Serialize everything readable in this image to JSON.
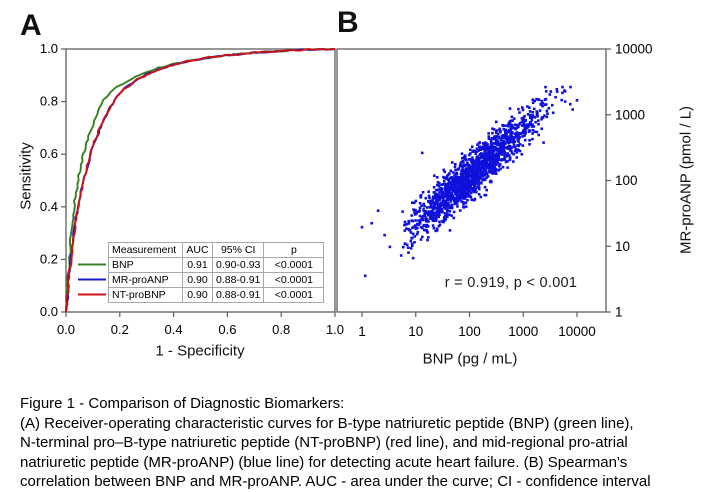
{
  "panels": {
    "a_label": "A",
    "b_label": "B"
  },
  "colors": {
    "axis": "#5f5f5f",
    "bnp_green": "#35801f",
    "mrproanp_blue": "#1a1acc",
    "ntprobnp_red": "#cc1414",
    "scatter_blue": "#1010dd"
  },
  "caption": {
    "lines": [
      "Figure 1 - Comparison of Diagnostic Biomarkers:",
      "(A) Receiver-operating characteristic curves for B-type natriuretic peptide (BNP) (green line),",
      "N-terminal pro–B-type natriuretic peptide (NT-proBNP) (red line), and mid-regional pro-atrial",
      "natriuretic peptide (MR-proANP) (blue line) for detecting acute heart failure. (B) Spearman's",
      "correlation between BNP and MR-proANP. AUC - area under the curve; CI - confidence interval"
    ]
  },
  "chart_data": [
    {
      "type": "line",
      "panel": "A",
      "xlabel": "1 - Specificity",
      "ylabel": "Sensitivity",
      "xlim": [
        0,
        1
      ],
      "ylim": [
        0,
        1
      ],
      "x_ticks": [
        "0.0",
        "0.2",
        "0.4",
        "0.6",
        "0.8",
        "1.0"
      ],
      "y_ticks": [
        "0.0",
        "0.2",
        "0.4",
        "0.6",
        "0.8",
        "1.0"
      ],
      "grid": false,
      "series": [
        {
          "name": "BNP",
          "color": "#35801f",
          "points": [
            [
              0,
              0
            ],
            [
              0.004,
              0.06
            ],
            [
              0.008,
              0.13
            ],
            [
              0.012,
              0.19
            ],
            [
              0.016,
              0.26
            ],
            [
              0.02,
              0.31
            ],
            [
              0.026,
              0.37
            ],
            [
              0.032,
              0.42
            ],
            [
              0.04,
              0.47
            ],
            [
              0.048,
              0.52
            ],
            [
              0.056,
              0.56
            ],
            [
              0.065,
              0.6
            ],
            [
              0.075,
              0.64
            ],
            [
              0.085,
              0.67
            ],
            [
              0.095,
              0.7
            ],
            [
              0.105,
              0.725
            ],
            [
              0.115,
              0.75
            ],
            [
              0.125,
              0.775
            ],
            [
              0.135,
              0.8
            ],
            [
              0.15,
              0.82
            ],
            [
              0.165,
              0.835
            ],
            [
              0.18,
              0.85
            ],
            [
              0.2,
              0.862
            ],
            [
              0.22,
              0.875
            ],
            [
              0.245,
              0.887
            ],
            [
              0.27,
              0.9
            ],
            [
              0.3,
              0.912
            ],
            [
              0.33,
              0.923
            ],
            [
              0.36,
              0.932
            ],
            [
              0.4,
              0.943
            ],
            [
              0.44,
              0.952
            ],
            [
              0.48,
              0.96
            ],
            [
              0.52,
              0.966
            ],
            [
              0.56,
              0.972
            ],
            [
              0.62,
              0.978
            ],
            [
              0.68,
              0.984
            ],
            [
              0.75,
              0.99
            ],
            [
              0.82,
              0.994
            ],
            [
              0.9,
              0.997
            ],
            [
              1,
              1
            ]
          ]
        },
        {
          "name": "MR-proANP",
          "color": "#1a1acc",
          "points": [
            [
              0,
              0
            ],
            [
              0.006,
              0.07
            ],
            [
              0.012,
              0.14
            ],
            [
              0.018,
              0.2
            ],
            [
              0.024,
              0.26
            ],
            [
              0.03,
              0.31
            ],
            [
              0.038,
              0.36
            ],
            [
              0.046,
              0.41
            ],
            [
              0.055,
              0.46
            ],
            [
              0.065,
              0.5
            ],
            [
              0.075,
              0.54
            ],
            [
              0.085,
              0.575
            ],
            [
              0.095,
              0.61
            ],
            [
              0.105,
              0.64
            ],
            [
              0.115,
              0.665
            ],
            [
              0.125,
              0.69
            ],
            [
              0.135,
              0.715
            ],
            [
              0.145,
              0.74
            ],
            [
              0.155,
              0.762
            ],
            [
              0.165,
              0.78
            ],
            [
              0.178,
              0.8
            ],
            [
              0.19,
              0.818
            ],
            [
              0.205,
              0.835
            ],
            [
              0.22,
              0.85
            ],
            [
              0.24,
              0.866
            ],
            [
              0.26,
              0.88
            ],
            [
              0.285,
              0.895
            ],
            [
              0.31,
              0.908
            ],
            [
              0.34,
              0.92
            ],
            [
              0.37,
              0.93
            ],
            [
              0.41,
              0.942
            ],
            [
              0.45,
              0.952
            ],
            [
              0.5,
              0.962
            ],
            [
              0.55,
              0.97
            ],
            [
              0.61,
              0.977
            ],
            [
              0.68,
              0.983
            ],
            [
              0.75,
              0.989
            ],
            [
              0.83,
              0.994
            ],
            [
              0.91,
              0.998
            ],
            [
              1,
              1
            ]
          ]
        },
        {
          "name": "NT-proBNP",
          "color": "#cc1414",
          "points": [
            [
              0,
              0
            ],
            [
              0.005,
              0.06
            ],
            [
              0.011,
              0.13
            ],
            [
              0.017,
              0.19
            ],
            [
              0.023,
              0.25
            ],
            [
              0.03,
              0.305
            ],
            [
              0.038,
              0.355
            ],
            [
              0.047,
              0.405
            ],
            [
              0.056,
              0.455
            ],
            [
              0.066,
              0.5
            ],
            [
              0.076,
              0.545
            ],
            [
              0.086,
              0.585
            ],
            [
              0.096,
              0.62
            ],
            [
              0.106,
              0.65
            ],
            [
              0.116,
              0.675
            ],
            [
              0.126,
              0.7
            ],
            [
              0.136,
              0.72
            ],
            [
              0.146,
              0.745
            ],
            [
              0.156,
              0.765
            ],
            [
              0.168,
              0.785
            ],
            [
              0.18,
              0.805
            ],
            [
              0.193,
              0.822
            ],
            [
              0.208,
              0.84
            ],
            [
              0.225,
              0.856
            ],
            [
              0.245,
              0.87
            ],
            [
              0.265,
              0.884
            ],
            [
              0.29,
              0.898
            ],
            [
              0.315,
              0.91
            ],
            [
              0.345,
              0.922
            ],
            [
              0.38,
              0.934
            ],
            [
              0.42,
              0.945
            ],
            [
              0.46,
              0.955
            ],
            [
              0.51,
              0.964
            ],
            [
              0.56,
              0.971
            ],
            [
              0.62,
              0.978
            ],
            [
              0.69,
              0.985
            ],
            [
              0.76,
              0.99
            ],
            [
              0.84,
              0.995
            ],
            [
              0.92,
              0.998
            ],
            [
              1,
              1
            ]
          ]
        }
      ],
      "legend_table": {
        "headers": [
          "Measurement",
          "AUC",
          "95% CI",
          "p"
        ],
        "rows": [
          {
            "name": "BNP",
            "auc": "0.91",
            "ci": "0.90-0.93",
            "p": "<0.0001",
            "color": "#35801f"
          },
          {
            "name": "MR-proANP",
            "auc": "0.90",
            "ci": "0.88-0.91",
            "p": "<0.0001",
            "color": "#1a1acc"
          },
          {
            "name": "NT-proBNP",
            "auc": "0.90",
            "ci": "0.88-0.91",
            "p": "<0.0001",
            "color": "#cc1414"
          }
        ]
      }
    },
    {
      "type": "scatter",
      "panel": "B",
      "xlabel": "BNP (pg / mL)",
      "ylabel": "MR-proANP (pmol / L)",
      "x_scale": "log",
      "y_scale": "log",
      "xlim": [
        0.34,
        35000
      ],
      "ylim": [
        1,
        10000
      ],
      "x_ticks": [
        "1",
        "10",
        "100",
        "1000",
        "10000"
      ],
      "y_ticks": [
        "1",
        "10",
        "100",
        "1000",
        "10000"
      ],
      "annotation": "r = 0.919,  p < 0.001",
      "point_color": "#1010dd",
      "cloud": {
        "n": 1600,
        "seed": 42,
        "logx_mean": 2.05,
        "logx_sd": 0.62,
        "logx_min": 0.75,
        "logx_max": 4.0,
        "slope": 0.72,
        "intercept": 0.62,
        "noise_sd": 0.17,
        "logy_min": 0.5,
        "logy_max": 3.42
      },
      "outlier_points_log10": [
        [
          0.06,
          0.55
        ],
        [
          0.0,
          1.29
        ],
        [
          0.18,
          1.35
        ],
        [
          0.3,
          1.54
        ],
        [
          0.42,
          1.17
        ],
        [
          0.52,
          0.99
        ],
        [
          0.73,
          0.86
        ],
        [
          0.95,
          0.82
        ],
        [
          1.12,
          2.42
        ],
        [
          3.78,
          3.2
        ],
        [
          3.92,
          3.08
        ],
        [
          4.0,
          3.22
        ]
      ]
    }
  ]
}
